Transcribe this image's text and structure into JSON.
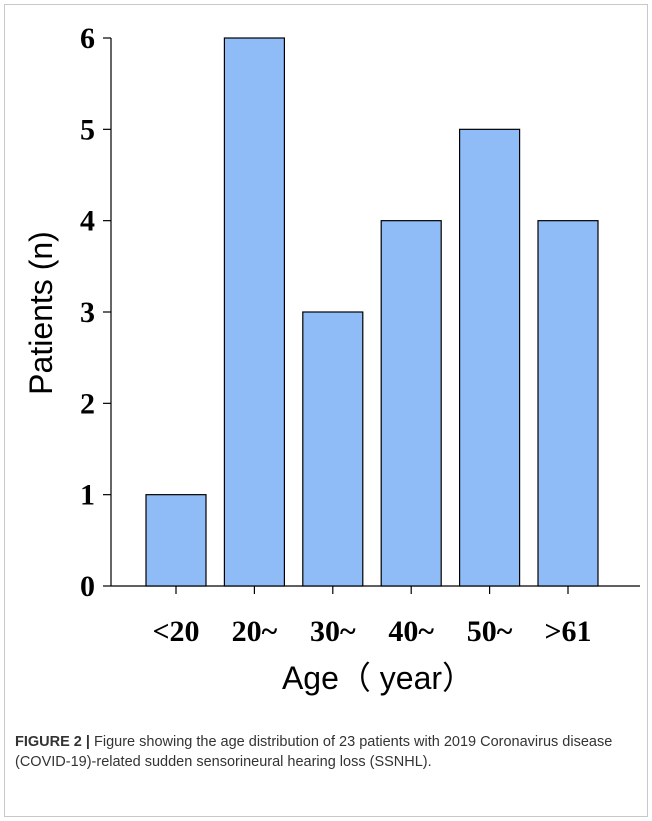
{
  "chart_data": {
    "type": "bar",
    "categories": [
      "<20",
      "20~",
      "30~",
      "40~",
      "50~",
      ">61"
    ],
    "values": [
      1,
      6,
      3,
      4,
      5,
      4
    ],
    "xlabel": "Age（ year）",
    "ylabel": "Patients (n)",
    "ylim": [
      0,
      6
    ],
    "yticks": [
      0,
      1,
      2,
      3,
      4,
      5,
      6
    ],
    "grid": false,
    "bar_color": "#8fbcf7",
    "bar_edge_color": "#000000"
  },
  "caption": {
    "label": "FIGURE 2 |",
    "text": " Figure showing the age distribution of 23 patients with 2019 Coronavirus disease (COVID-19)-related sudden sensorineural hearing loss (SSNHL)."
  }
}
